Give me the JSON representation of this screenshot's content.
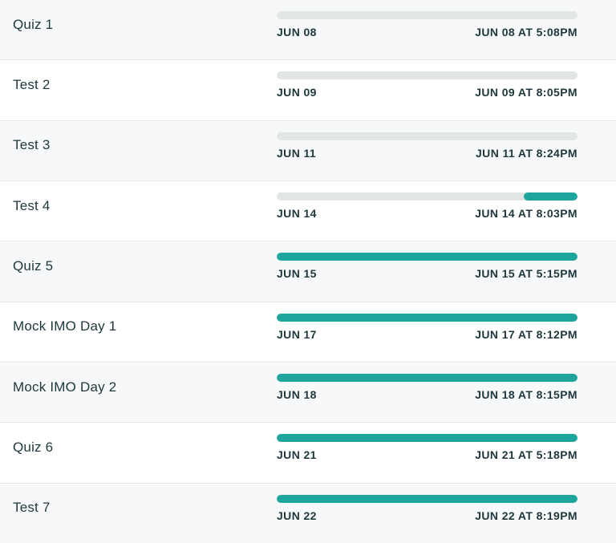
{
  "colors": {
    "accent_teal": "#1DA49C",
    "track_gray": "#E2E5E6",
    "row_alt_bg": "#F7F8F9",
    "row_bg": "#FFFFFF",
    "divider": "#E5E5EC",
    "text": "#1E373C"
  },
  "rows": [
    {
      "title": "Quiz 1",
      "start_label": "JUN 08",
      "end_label": "JUN 08 AT 5:08PM",
      "progress_percent": 0,
      "fill_align": "left"
    },
    {
      "title": "Test 2",
      "start_label": "JUN 09",
      "end_label": "JUN 09 AT 8:05PM",
      "progress_percent": 0,
      "fill_align": "left"
    },
    {
      "title": "Test 3",
      "start_label": "JUN 11",
      "end_label": "JUN 11 AT 8:24PM",
      "progress_percent": 0,
      "fill_align": "left"
    },
    {
      "title": "Test 4",
      "start_label": "JUN 14",
      "end_label": "JUN 14 AT 8:03PM",
      "progress_percent": 18,
      "fill_align": "right"
    },
    {
      "title": "Quiz 5",
      "start_label": "JUN 15",
      "end_label": "JUN 15 AT 5:15PM",
      "progress_percent": 100,
      "fill_align": "left"
    },
    {
      "title": "Mock IMO Day 1",
      "start_label": "JUN 17",
      "end_label": "JUN 17 AT 8:12PM",
      "progress_percent": 100,
      "fill_align": "left"
    },
    {
      "title": "Mock IMO Day 2",
      "start_label": "JUN 18",
      "end_label": "JUN 18 AT 8:15PM",
      "progress_percent": 100,
      "fill_align": "left"
    },
    {
      "title": "Quiz 6",
      "start_label": "JUN 21",
      "end_label": "JUN 21 AT 5:18PM",
      "progress_percent": 100,
      "fill_align": "left"
    },
    {
      "title": "Test 7",
      "start_label": "JUN 22",
      "end_label": "JUN 22 AT 8:19PM",
      "progress_percent": 100,
      "fill_align": "left"
    }
  ]
}
